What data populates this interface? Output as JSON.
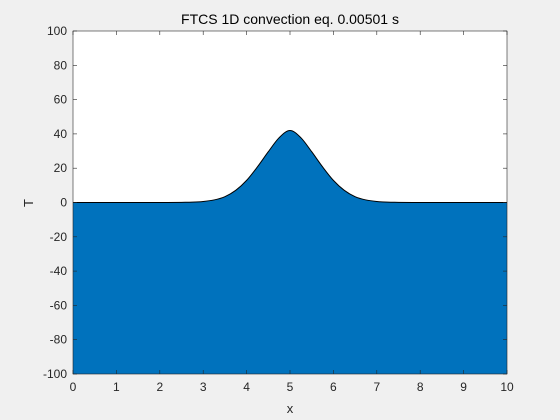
{
  "chart_data": {
    "type": "area",
    "title": "FTCS 1D convection eq. 0.00501 s",
    "xlabel": "x",
    "ylabel": "T",
    "xlim": [
      0,
      10
    ],
    "ylim": [
      -100,
      100
    ],
    "xticks": [
      0,
      1,
      2,
      3,
      4,
      5,
      6,
      7,
      8,
      9,
      10
    ],
    "yticks": [
      -100,
      -80,
      -60,
      -40,
      -20,
      0,
      20,
      40,
      60,
      80,
      100
    ],
    "baseline": -100,
    "grid": false,
    "series": [
      {
        "color": "#0072bd",
        "edge_color": "#000000",
        "x": [
          0,
          0.5,
          1,
          1.5,
          2,
          2.5,
          2.75,
          3,
          3.25,
          3.5,
          3.75,
          4,
          4.25,
          4.5,
          4.75,
          5,
          5.25,
          5.5,
          5.75,
          6,
          6.25,
          6.5,
          6.75,
          7,
          7.25,
          7.5,
          8,
          8.5,
          9,
          9.5,
          10
        ],
        "y": [
          0,
          0,
          0,
          0,
          0,
          0.1,
          0.2,
          0.6,
          1.5,
          3.4,
          7.1,
          12.9,
          20.8,
          29.6,
          37.8,
          42.0,
          37.8,
          29.6,
          20.8,
          12.9,
          7.1,
          3.4,
          1.5,
          0.6,
          0.2,
          0.1,
          0,
          0,
          0,
          0,
          0
        ]
      }
    ]
  },
  "colors": {
    "figure_background": "#f0f0f0",
    "axes_background": "#ffffff",
    "axis_color": "#262626"
  }
}
